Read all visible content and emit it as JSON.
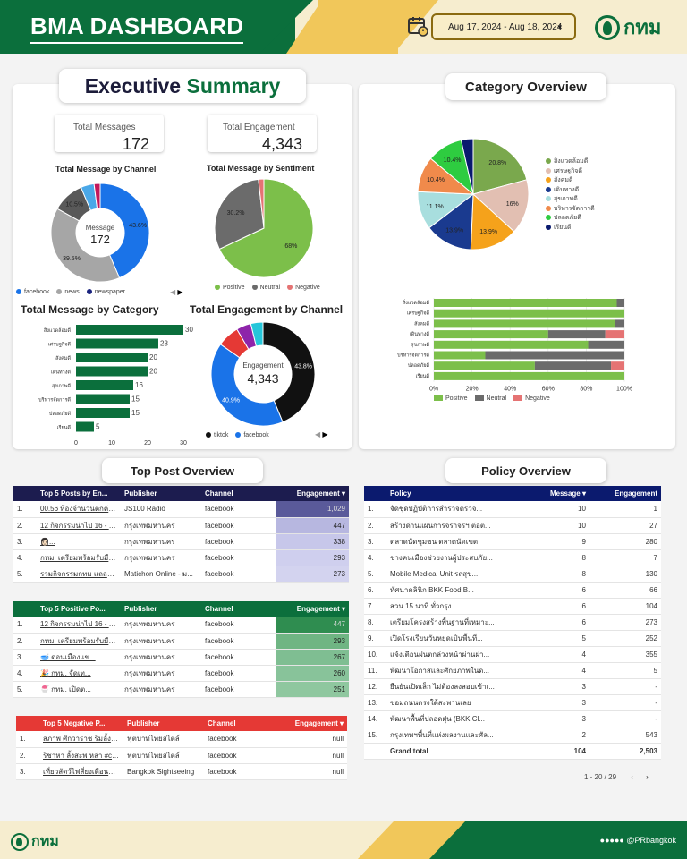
{
  "header": {
    "title": "BMA DASHBOARD",
    "date_range": "Aug 17, 2024 - Aug 18, 2024",
    "logo_text": "กทม"
  },
  "exec": {
    "title_a": "Executive",
    "title_b": "Summary",
    "kpi_messages": {
      "label": "Total Messages",
      "value": "172"
    },
    "kpi_engagement": {
      "label": "Total Engagement",
      "value": "4,343"
    },
    "channel_chart": {
      "title": "Total Message by Channel",
      "center_label": "Message",
      "center_value": "172",
      "slices": [
        {
          "label": "43.6%",
          "value": 43.6,
          "color": "#1a73e8"
        },
        {
          "label": "39.5%",
          "value": 39.5,
          "color": "#a6a6a6"
        },
        {
          "label": "10.5%",
          "value": 10.5,
          "color": "#595959"
        },
        {
          "label": "",
          "value": 4.4,
          "color": "#4aa8e8"
        },
        {
          "label": "",
          "value": 2.0,
          "color": "#c2185b"
        }
      ],
      "legend": [
        {
          "name": "facebook",
          "color": "#1a73e8"
        },
        {
          "name": "news",
          "color": "#a6a6a6"
        },
        {
          "name": "newspaper",
          "color": "#1a237e"
        }
      ]
    },
    "sentiment_chart": {
      "title": "Total Message by Sentiment",
      "slices": [
        {
          "label": "68%",
          "value": 68,
          "color": "#7cbf4a"
        },
        {
          "label": "30.2%",
          "value": 30.2,
          "color": "#6b6b6b"
        },
        {
          "label": "",
          "value": 1.8,
          "color": "#e57373"
        }
      ],
      "legend": [
        {
          "name": "Positive",
          "color": "#7cbf4a"
        },
        {
          "name": "Neutral",
          "color": "#6b6b6b"
        },
        {
          "name": "Negative",
          "color": "#e57373"
        }
      ]
    },
    "category_chart": {
      "title": "Total Message by Category",
      "bars": [
        {
          "label": "สิ่งแวดล้อมดี",
          "value": 30
        },
        {
          "label": "เศรษฐกิจดี",
          "value": 23
        },
        {
          "label": "สังคมดี",
          "value": 20
        },
        {
          "label": "เดินทางดี",
          "value": 20
        },
        {
          "label": "สุขภาพดี",
          "value": 16
        },
        {
          "label": "บริหารจัดการดี",
          "value": 15
        },
        {
          "label": "ปลอดภัยดี",
          "value": 15
        },
        {
          "label": "เรียนดี",
          "value": 5
        }
      ],
      "ticks": [
        "0",
        "10",
        "20",
        "30"
      ]
    },
    "engagement_chart": {
      "title": "Total Engagement by Channel",
      "center_label": "Engagement",
      "center_value": "4,343",
      "slices": [
        {
          "label": "43.8%",
          "value": 43.8,
          "color": "#111111"
        },
        {
          "label": "40.9%",
          "value": 40.9,
          "color": "#1a73e8"
        },
        {
          "label": "",
          "value": 6.9,
          "color": "#e53935"
        },
        {
          "label": "",
          "value": 4.6,
          "color": "#8e24aa"
        },
        {
          "label": "",
          "value": 3.8,
          "color": "#26c6da"
        }
      ],
      "legend": [
        {
          "name": "tiktok",
          "color": "#111111"
        },
        {
          "name": "facebook",
          "color": "#1a73e8"
        }
      ]
    }
  },
  "cat_overview": {
    "title": "Category Overview",
    "pie": [
      {
        "label": "20.8%",
        "value": 20.8,
        "color": "#7aa84d"
      },
      {
        "label": "16%",
        "value": 16,
        "color": "#e2bfb2"
      },
      {
        "label": "13.9%",
        "value": 13.9,
        "color": "#f5a21b"
      },
      {
        "label": "13.9%",
        "value": 13.9,
        "color": "#1a3a8f"
      },
      {
        "label": "11.1%",
        "value": 11.1,
        "color": "#a8dede"
      },
      {
        "label": "10.4%",
        "value": 10.4,
        "color": "#f08a4b"
      },
      {
        "label": "10.4%",
        "value": 10.4,
        "color": "#2ecc40"
      },
      {
        "label": "",
        "value": 3.5,
        "color": "#0a1a6e"
      }
    ],
    "legend": [
      {
        "name": "สิ่งแวดล้อมดี",
        "color": "#7aa84d"
      },
      {
        "name": "เศรษฐกิจดี",
        "color": "#e2bfb2"
      },
      {
        "name": "สังคมดี",
        "color": "#f5a21b"
      },
      {
        "name": "เดินทางดี",
        "color": "#1a3a8f"
      },
      {
        "name": "สุขภาพดี",
        "color": "#a8dede"
      },
      {
        "name": "บริหารจัดการดี",
        "color": "#f08a4b"
      },
      {
        "name": "ปลอดภัยดี",
        "color": "#2ecc40"
      },
      {
        "name": "เรียนดี",
        "color": "#0a1a6e"
      }
    ],
    "stack": [
      {
        "label": "สิ่งแวดล้อมดี",
        "pos": 96,
        "neu": 4,
        "neg": 0
      },
      {
        "label": "เศรษฐกิจดี",
        "pos": 100,
        "neu": 0,
        "neg": 0
      },
      {
        "label": "สังคมดี",
        "pos": 95,
        "neu": 5,
        "neg": 0
      },
      {
        "label": "เดินทางดี",
        "pos": 60,
        "neu": 30,
        "neg": 10
      },
      {
        "label": "สุขภาพดี",
        "pos": 81,
        "neu": 19,
        "neg": 0
      },
      {
        "label": "บริหารจัดการดี",
        "pos": 27,
        "neu": 73,
        "neg": 0
      },
      {
        "label": "ปลอดภัยดี",
        "pos": 53,
        "neu": 40,
        "neg": 7
      },
      {
        "label": "เรียนดี",
        "pos": 100,
        "neu": 0,
        "neg": 0
      }
    ],
    "ticks": [
      "0%",
      "20%",
      "40%",
      "60%",
      "80%",
      "100%"
    ],
    "legend2": [
      {
        "name": "Positive",
        "color": "#7cbf4a"
      },
      {
        "name": "Neutral",
        "color": "#6b6b6b"
      },
      {
        "name": "Negative",
        "color": "#e57373"
      }
    ]
  },
  "top_post": {
    "title": "Top Post Overview",
    "t1": {
      "headers": [
        "",
        "Top 5 Posts by En...",
        "Publisher",
        "Channel",
        "Engagement ▾"
      ],
      "rows": [
        [
          "1.",
          "00.56 ท้องจำนวนตกค่าง ...",
          "JS100 Radio",
          "facebook",
          "1,029"
        ],
        [
          "2.",
          "12 กิจกรรมน่าไป 16 - 23 ...",
          "กรุงเทพมหานคร",
          "facebook",
          "447"
        ],
        [
          "3.",
          "&#128105;&#127995;...",
          "กรุงเทพมหานคร",
          "facebook",
          "338"
        ],
        [
          "4.",
          "กทม. เตรียมพร้อมรับมือสถ...",
          "กรุงเทพมหานคร",
          "facebook",
          "293"
        ],
        [
          "5.",
          "รวมกิจกรรมกทม แถลงข่า...",
          "Matichon Online - ม...",
          "facebook",
          "273"
        ]
      ]
    },
    "t2": {
      "headers": [
        "",
        "Top 5 Positive Po...",
        "Publisher",
        "Channel",
        "Engagement ▾"
      ],
      "rows": [
        [
          "1.",
          "12 กิจกรรมน่าไป 16 - 2...",
          "กรุงเทพมหานคร",
          "facebook",
          "447"
        ],
        [
          "2.",
          "กทม. เตรียมพร้อมรับมือสถ...",
          "กรุงเทพมหานคร",
          "facebook",
          "293"
        ],
        [
          "3.",
          "&#129379; ดอนเมืองแข...",
          "กรุงเทพมหานคร",
          "facebook",
          "267"
        ],
        [
          "4.",
          "&#127881; กทม. จัดเท...",
          "กรุงเทพมหานคร",
          "facebook",
          "260"
        ],
        [
          "5.",
          "&#127847; กทม. เปิดต...",
          "กรุงเทพมหานคร",
          "facebook",
          "251"
        ]
      ]
    },
    "t3": {
      "headers": [
        "",
        "Top 5 Negative P...",
        "Publisher",
        "Channel",
        "Engagement ▾"
      ],
      "rows": [
        [
          "1.",
          "สภาพ ศึกวาราช ริมลั้งรั้...",
          "ฟุตบาทไทยสไตล์",
          "facebook",
          "null"
        ],
        [
          "2.",
          "ริชาหา ลั้งสะพ หล่า #cent...",
          "ฟุตบาทไทยสไตล์",
          "facebook",
          "null"
        ],
        [
          "3.",
          "เที่ยวสัตว์ไฟสี่ยงเตือนลม...",
          "Bangkok Sightseeing",
          "facebook",
          "null"
        ]
      ]
    }
  },
  "policy": {
    "title": "Policy Overview",
    "headers": [
      "",
      "Policy",
      "Message ▾",
      "Engagement"
    ],
    "rows": [
      [
        "1.",
        "จัดชุดปฏิบัติการสำรวจตรวจ...",
        "10",
        "1"
      ],
      [
        "2.",
        "สร้างด่านแผนการจราจรฯ ต่อต...",
        "10",
        "27"
      ],
      [
        "3.",
        "ตลาดนัดชุมชน ตลาดนัดเขต",
        "9",
        "280"
      ],
      [
        "4.",
        "ช่างคนเมืองช่วยงานผู้ประสบภัย...",
        "8",
        "7"
      ],
      [
        "5.",
        "Mobile Medical Unit รถสุข...",
        "8",
        "130"
      ],
      [
        "6.",
        "ทัศนาคลินิก BKK Food B...",
        "6",
        "66"
      ],
      [
        "7.",
        "สวน 15 นาที ทั่วกรุง",
        "6",
        "104"
      ],
      [
        "8.",
        "เตรียมโครงสร้างพื้นฐานที่เหมาะ...",
        "6",
        "273"
      ],
      [
        "9.",
        "เปิดโรงเรียนวันหยุดเป็นพื้นที่...",
        "5",
        "252"
      ],
      [
        "10.",
        "แจ้งเตือนฝนตกล่วงหน้าผ่านฝา...",
        "4",
        "355"
      ],
      [
        "11.",
        "พัฒนาโอกาสและศักยภาพในด...",
        "4",
        "5"
      ],
      [
        "12.",
        "ยืนยันเปิดเล็ก ไม่ต้องลงสอบเข้าเ...",
        "3",
        "-"
      ],
      [
        "13.",
        "ซ่อมถนนตรงใต้สะพานเลย",
        "3",
        "-"
      ],
      [
        "14.",
        "พัฒนาพื้นที่ปลอดฝุ่น (BKK Cl...",
        "3",
        "-"
      ],
      [
        "15.",
        "กรุงเทพฯพื้นที่แห่งผลงานและศัล...",
        "2",
        "543"
      ]
    ],
    "total": {
      "label": "Grand total",
      "message": "104",
      "engagement": "2,503"
    },
    "pager": "1 - 20 / 29"
  },
  "footer": {
    "logo_text": "กทม",
    "social": "@PRbangkok"
  }
}
